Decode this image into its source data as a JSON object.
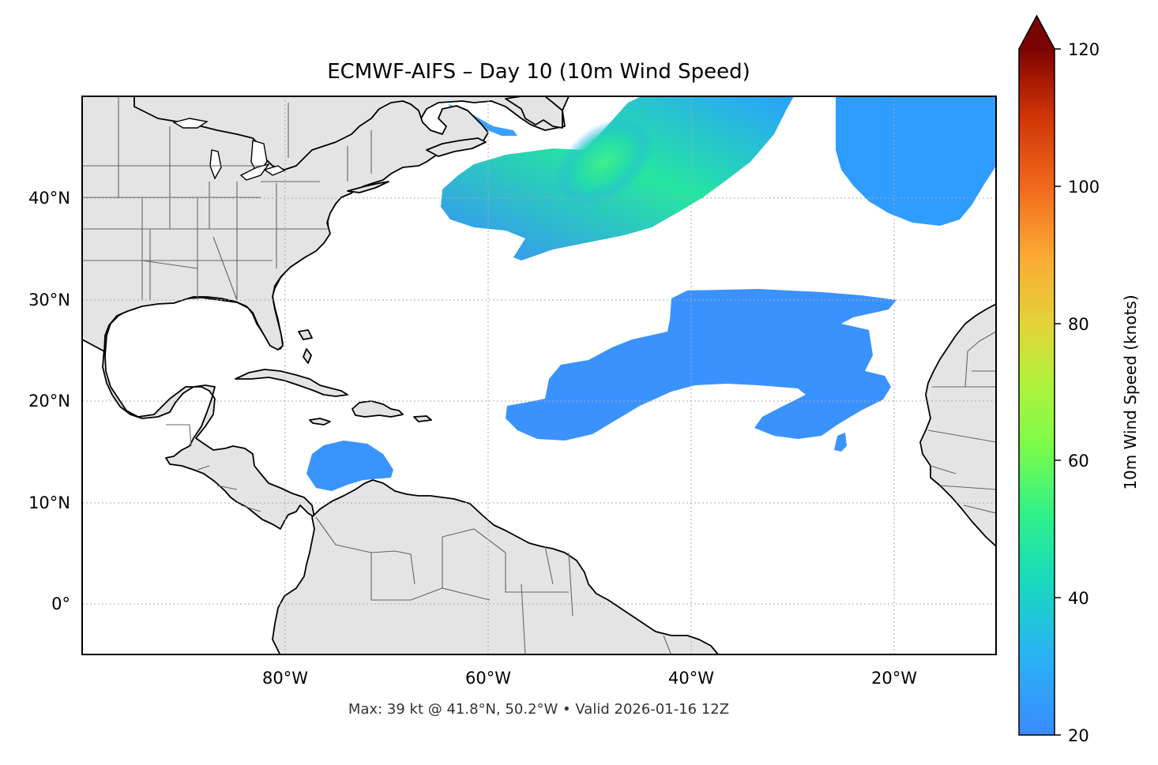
{
  "title": "ECMWF-AIFS – Day 10 (10m Wind Speed)",
  "footer": "Max: 39 kt @ 41.8°N, 50.2°W • Valid 2026-01-16 12Z",
  "map": {
    "extent": {
      "lon_min": -100,
      "lon_max": -10,
      "lat_min": -5,
      "lat_max": 50
    },
    "lon_ticks": [
      "80°W",
      "60°W",
      "40°W",
      "20°W"
    ],
    "lat_ticks": [
      "40°N",
      "30°N",
      "20°N",
      "10°N",
      "0°"
    ],
    "gridlines": true,
    "land_color": "#e4e4e4",
    "ocean_color": "#ffffff"
  },
  "colorbar": {
    "label": "10m Wind Speed (knots)",
    "ticks": [
      "20",
      "40",
      "60",
      "80",
      "100",
      "120"
    ],
    "range": [
      20,
      120
    ],
    "extend": "max",
    "colormap": "turbo"
  },
  "wind_regions": [
    {
      "name": "north-atlantic-jet-core",
      "max_kt": 39,
      "lat": 41.8,
      "lon": -50.2
    }
  ]
}
